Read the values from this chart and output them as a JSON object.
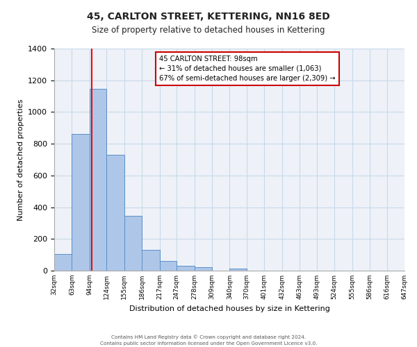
{
  "title": "45, CARLTON STREET, KETTERING, NN16 8ED",
  "subtitle": "Size of property relative to detached houses in Kettering",
  "xlabel": "Distribution of detached houses by size in Kettering",
  "ylabel": "Number of detached properties",
  "bins": [
    "32sqm",
    "63sqm",
    "94sqm",
    "124sqm",
    "155sqm",
    "186sqm",
    "217sqm",
    "247sqm",
    "278sqm",
    "309sqm",
    "340sqm",
    "370sqm",
    "401sqm",
    "432sqm",
    "463sqm",
    "493sqm",
    "524sqm",
    "555sqm",
    "586sqm",
    "616sqm",
    "647sqm"
  ],
  "bar_values": [
    105,
    860,
    1145,
    730,
    345,
    130,
    60,
    30,
    20,
    0,
    15,
    0,
    0,
    0,
    0,
    0,
    0,
    0,
    0,
    0
  ],
  "bar_color": "#aec6e8",
  "bar_edge_color": "#5a90c8",
  "bar_edge_width": 0.7,
  "grid_color": "#c8d8e8",
  "background_color": "#eef2f8",
  "red_line_x": 98,
  "bin_edges": [
    32,
    63,
    94,
    124,
    155,
    186,
    217,
    247,
    278,
    309,
    340,
    370,
    401,
    432,
    463,
    493,
    524,
    555,
    586,
    616,
    647
  ],
  "ylim": [
    0,
    1400
  ],
  "yticks": [
    0,
    200,
    400,
    600,
    800,
    1000,
    1200,
    1400
  ],
  "annotation_title": "45 CARLTON STREET: 98sqm",
  "annotation_line1": "← 31% of detached houses are smaller (1,063)",
  "annotation_line2": "67% of semi-detached houses are larger (2,309) →",
  "annotation_box_color": "#ffffff",
  "annotation_box_edge": "#cc0000",
  "footer1": "Contains HM Land Registry data © Crown copyright and database right 2024.",
  "footer2": "Contains public sector information licensed under the Open Government Licence v3.0."
}
